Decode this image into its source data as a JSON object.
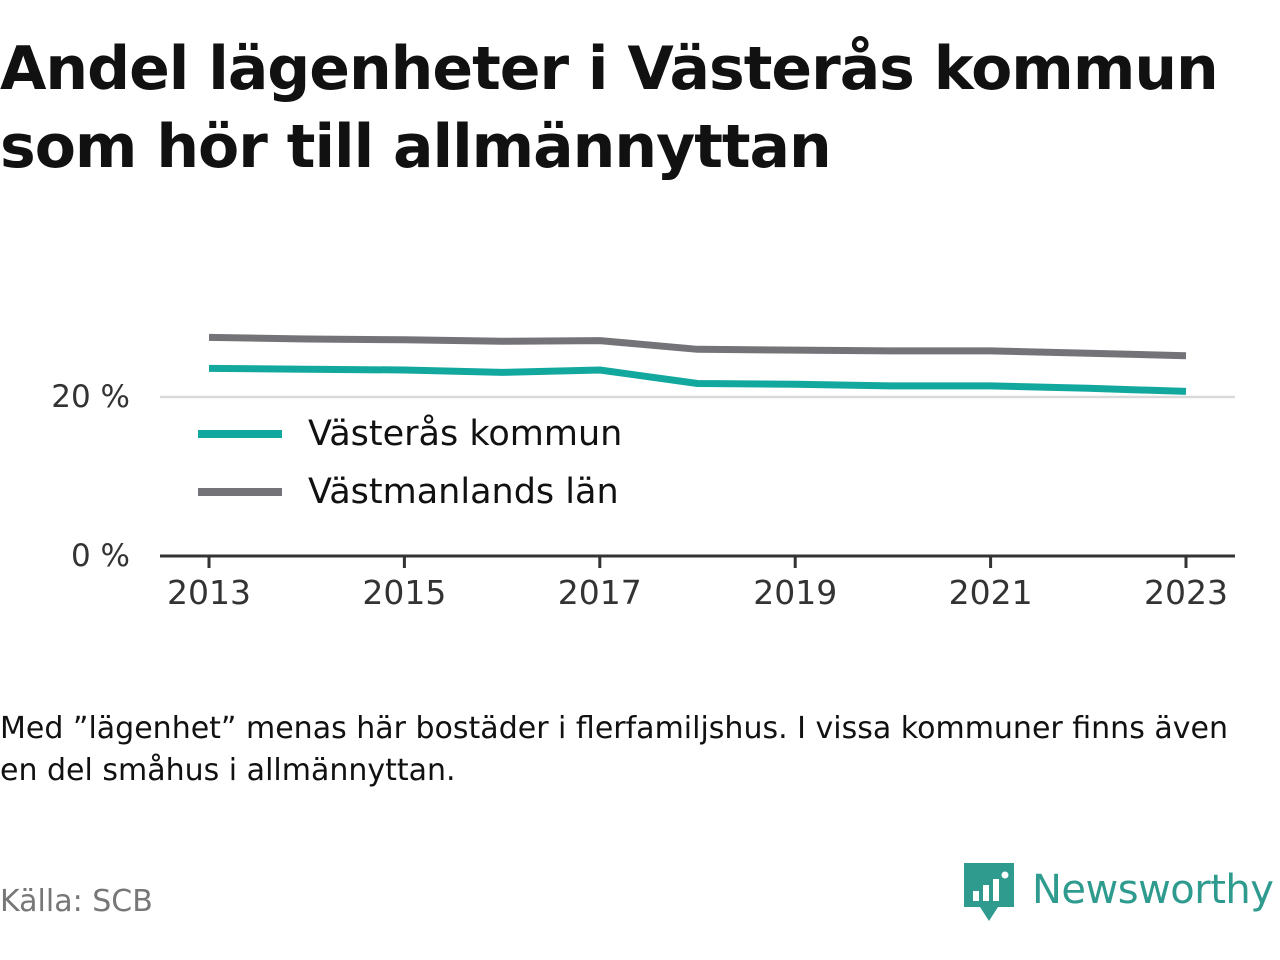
{
  "title": "Andel lägenheter i Västerås kommun som hör till allmännyttan",
  "note": "Med ”lägenhet” menas här bostäder i flerfamiljshus. I vissa kommuner finns även en del småhus i allmännyttan.",
  "source": "Källa: SCB",
  "brand": {
    "name": "Newsworthy",
    "logo_icon": "newsworthy-chart-bubble-icon",
    "color": "#2f9b8f"
  },
  "colors": {
    "vasteras": "#13a89e",
    "lan": "#747378",
    "grid": "#d9d9d9",
    "axis": "#333333",
    "tick_label": "#333333"
  },
  "chart_data": {
    "type": "line",
    "x": [
      2013,
      2014,
      2015,
      2016,
      2017,
      2018,
      2019,
      2020,
      2021,
      2022,
      2023
    ],
    "x_ticks": [
      2013,
      2015,
      2017,
      2019,
      2021,
      2023
    ],
    "x_tick_labels": [
      "2013",
      "2015",
      "2017",
      "2019",
      "2021",
      "2023"
    ],
    "y_ticks": [
      0,
      20
    ],
    "y_tick_labels": [
      "0 %",
      "20 %"
    ],
    "ylim": [
      0,
      30
    ],
    "grid": true,
    "legend_position": "left",
    "series": [
      {
        "name": "Västerås kommun",
        "color": "#13a89e",
        "values": [
          23.6,
          23.5,
          23.4,
          23.1,
          23.4,
          21.7,
          21.6,
          21.4,
          21.4,
          21.1,
          20.7
        ]
      },
      {
        "name": "Västmanlands län",
        "color": "#747378",
        "values": [
          27.5,
          27.3,
          27.2,
          27.0,
          27.1,
          26.0,
          25.9,
          25.8,
          25.8,
          25.5,
          25.2
        ]
      }
    ]
  }
}
